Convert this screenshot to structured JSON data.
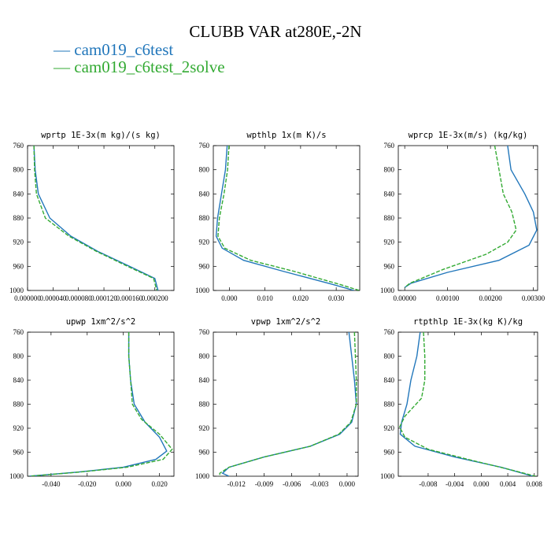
{
  "title": "CLUBB VAR at280E,-2N",
  "legend": [
    {
      "label": "cam019_c6test",
      "color": "#2277bb"
    },
    {
      "label": "cam019_c6test_2solve",
      "color": "#33aa33"
    }
  ],
  "chart_data": [
    {
      "type": "line",
      "title": "wprtp  1E-3x(m kg)/(s kg)",
      "xlim": [
        0.0,
        0.00023
      ],
      "ylim": [
        760,
        1000
      ],
      "y_inverted": true,
      "xticks": [
        0.0,
        4e-05,
        8e-05,
        0.00012,
        0.00016,
        0.0002
      ],
      "xtick_labels": [
        "0.000000",
        "0.000040",
        "0.000080",
        "0.000120",
        "0.000160",
        "0.000200"
      ],
      "yticks": [
        760,
        800,
        840,
        880,
        920,
        960,
        1000
      ],
      "series": [
        {
          "name": "cam019_c6test",
          "color": "#2277bb",
          "dash": "",
          "points": [
            [
              1e-05,
              760
            ],
            [
              1.2e-05,
              800
            ],
            [
              1.7e-05,
              840
            ],
            [
              3.5e-05,
              880
            ],
            [
              6.8e-05,
              910
            ],
            [
              0.00011,
              935
            ],
            [
              0.00016,
              960
            ],
            [
              0.0002,
              980
            ],
            [
              0.000205,
              1000
            ]
          ]
        },
        {
          "name": "cam019_c6test_2solve",
          "color": "#33aa33",
          "dash": "5,2",
          "points": [
            [
              1e-05,
              760
            ],
            [
              1.1e-05,
              800
            ],
            [
              1.4e-05,
              840
            ],
            [
              2.8e-05,
              880
            ],
            [
              6.5e-05,
              910
            ],
            [
              0.000108,
              935
            ],
            [
              0.000157,
              960
            ],
            [
              0.000198,
              980
            ],
            [
              0.000203,
              1000
            ]
          ]
        }
      ]
    },
    {
      "type": "line",
      "title": "wpthlp  1x(m K)/s",
      "xlim": [
        -0.0045,
        0.0366
      ],
      "ylim": [
        760,
        1000
      ],
      "y_inverted": true,
      "xticks": [
        0.0,
        0.01,
        0.02,
        0.03
      ],
      "xtick_labels": [
        "0.000",
        "0.010",
        "0.020",
        "0.030"
      ],
      "yticks": [
        760,
        800,
        840,
        880,
        920,
        960,
        1000
      ],
      "series": [
        {
          "name": "cam019_c6test",
          "color": "#2277bb",
          "dash": "",
          "points": [
            [
              -0.0006,
              760
            ],
            [
              -0.0011,
              800
            ],
            [
              -0.0022,
              840
            ],
            [
              -0.0033,
              880
            ],
            [
              -0.0037,
              910
            ],
            [
              -0.002,
              930
            ],
            [
              0.004,
              950
            ],
            [
              0.015,
              968
            ],
            [
              0.029,
              990
            ],
            [
              0.035,
              1000
            ]
          ]
        },
        {
          "name": "cam019_c6test_2solve",
          "color": "#33aa33",
          "dash": "5,2",
          "points": [
            [
              -0.0001,
              760
            ],
            [
              -0.0005,
              800
            ],
            [
              -0.0015,
              840
            ],
            [
              -0.0028,
              880
            ],
            [
              -0.0032,
              910
            ],
            [
              -0.0013,
              930
            ],
            [
              0.006,
              950
            ],
            [
              0.018,
              968
            ],
            [
              0.031,
              990
            ],
            [
              0.0365,
              1000
            ]
          ]
        }
      ]
    },
    {
      "type": "line",
      "title": "wprcp  1E-3x(m/s) (kg/kg)",
      "xlim": [
        -0.00015,
        0.0031
      ],
      "ylim": [
        760,
        1000
      ],
      "y_inverted": true,
      "xticks": [
        0.0,
        0.001,
        0.002,
        0.003
      ],
      "xtick_labels": [
        "0.00000",
        "0.00100",
        "0.00200",
        "0.00300"
      ],
      "yticks": [
        760,
        800,
        840,
        880,
        920,
        960,
        1000
      ],
      "series": [
        {
          "name": "cam019_c6test",
          "color": "#2277bb",
          "dash": "",
          "points": [
            [
              0.0024,
              760
            ],
            [
              0.00248,
              800
            ],
            [
              0.0028,
              840
            ],
            [
              0.003,
              870
            ],
            [
              0.00308,
              900
            ],
            [
              0.0029,
              925
            ],
            [
              0.0022,
              950
            ],
            [
              0.001,
              970
            ],
            [
              0.00015,
              988
            ],
            [
              0.0,
              995
            ]
          ]
        },
        {
          "name": "cam019_c6test_2solve",
          "color": "#33aa33",
          "dash": "5,2",
          "points": [
            [
              0.0021,
              760
            ],
            [
              0.0022,
              800
            ],
            [
              0.0023,
              840
            ],
            [
              0.0025,
              870
            ],
            [
              0.0026,
              900
            ],
            [
              0.0024,
              920
            ],
            [
              0.0019,
              940
            ],
            [
              0.0009,
              965
            ],
            [
              0.00012,
              988
            ],
            [
              0.0,
              995
            ]
          ]
        }
      ]
    },
    {
      "type": "line",
      "title": "upwp  1xm^2/s^2",
      "xlim": [
        -0.053,
        0.028
      ],
      "ylim": [
        760,
        1000
      ],
      "y_inverted": true,
      "xticks": [
        -0.04,
        -0.02,
        0.0,
        0.02
      ],
      "xtick_labels": [
        "-0.040",
        "-0.020",
        "0.000",
        "0.020"
      ],
      "yticks": [
        760,
        800,
        840,
        880,
        920,
        960,
        1000
      ],
      "series": [
        {
          "name": "cam019_c6test",
          "color": "#2277bb",
          "dash": "",
          "points": [
            [
              0.003,
              760
            ],
            [
              0.003,
              800
            ],
            [
              0.004,
              840
            ],
            [
              0.006,
              880
            ],
            [
              0.012,
              910
            ],
            [
              0.02,
              935
            ],
            [
              0.024,
              958
            ],
            [
              0.018,
              972
            ],
            [
              0.0,
              985
            ],
            [
              -0.025,
              993
            ],
            [
              -0.052,
              1000
            ]
          ]
        },
        {
          "name": "cam019_c6test_2solve",
          "color": "#33aa33",
          "dash": "5,2",
          "points": [
            [
              0.003,
              760
            ],
            [
              0.003,
              800
            ],
            [
              0.004,
              840
            ],
            [
              0.005,
              880
            ],
            [
              0.01,
              905
            ],
            [
              0.02,
              930
            ],
            [
              0.027,
              955
            ],
            [
              0.022,
              972
            ],
            [
              0.002,
              985
            ],
            [
              -0.024,
              993
            ],
            [
              -0.052,
              1000
            ]
          ]
        }
      ]
    },
    {
      "type": "line",
      "title": "vpwp  1xm^2/s^2",
      "xlim": [
        -0.0145,
        0.0012
      ],
      "ylim": [
        760,
        1000
      ],
      "y_inverted": true,
      "xticks": [
        -0.012,
        -0.009,
        -0.006,
        -0.003,
        0.0
      ],
      "xtick_labels": [
        "-0.012",
        "-0.009",
        "-0.006",
        "-0.003",
        "0.000"
      ],
      "yticks": [
        760,
        800,
        840,
        880,
        920,
        960,
        1000
      ],
      "series": [
        {
          "name": "cam019_c6test",
          "color": "#2277bb",
          "dash": "",
          "points": [
            [
              0.0002,
              760
            ],
            [
              0.0005,
              800
            ],
            [
              0.0008,
              840
            ],
            [
              0.001,
              880
            ],
            [
              0.0005,
              910
            ],
            [
              -0.0008,
              930
            ],
            [
              -0.004,
              950
            ],
            [
              -0.009,
              968
            ],
            [
              -0.0128,
              985
            ],
            [
              -0.0135,
              995
            ],
            [
              -0.0128,
              1000
            ]
          ]
        },
        {
          "name": "cam019_c6test_2solve",
          "color": "#33aa33",
          "dash": "5,2",
          "points": [
            [
              0.0008,
              760
            ],
            [
              0.0009,
              800
            ],
            [
              0.001,
              840
            ],
            [
              0.001,
              880
            ],
            [
              0.0004,
              910
            ],
            [
              -0.0009,
              930
            ],
            [
              -0.004,
              950
            ],
            [
              -0.009,
              968
            ],
            [
              -0.0128,
              985
            ],
            [
              -0.0138,
              995
            ],
            [
              -0.0138,
              1000
            ]
          ]
        }
      ]
    },
    {
      "type": "line",
      "title": "rtpthlp  1E-3x(kg K)/kg",
      "xlim": [
        -0.0125,
        0.0085
      ],
      "ylim": [
        760,
        1000
      ],
      "y_inverted": true,
      "xticks": [
        -0.008,
        -0.004,
        0.0,
        0.004,
        0.008
      ],
      "xtick_labels": [
        "-0.008",
        "-0.004",
        "0.000",
        "0.004",
        "0.008"
      ],
      "yticks": [
        760,
        800,
        840,
        880,
        920,
        960,
        1000
      ],
      "series": [
        {
          "name": "cam019_c6test",
          "color": "#2277bb",
          "dash": "",
          "points": [
            [
              -0.0092,
              760
            ],
            [
              -0.0097,
              800
            ],
            [
              -0.0106,
              840
            ],
            [
              -0.0112,
              880
            ],
            [
              -0.012,
              910
            ],
            [
              -0.0122,
              930
            ],
            [
              -0.01,
              950
            ],
            [
              -0.004,
              968
            ],
            [
              0.003,
              985
            ],
            [
              0.0078,
              1000
            ]
          ]
        },
        {
          "name": "cam019_c6test_2solve",
          "color": "#33aa33",
          "dash": "5,2",
          "points": [
            [
              -0.0087,
              760
            ],
            [
              -0.0085,
              800
            ],
            [
              -0.0085,
              840
            ],
            [
              -0.009,
              870
            ],
            [
              -0.0115,
              900
            ],
            [
              -0.0123,
              918
            ],
            [
              -0.0115,
              935
            ],
            [
              -0.008,
              955
            ],
            [
              -0.002,
              972
            ],
            [
              0.004,
              988
            ],
            [
              0.0082,
              1000
            ]
          ]
        }
      ]
    }
  ]
}
